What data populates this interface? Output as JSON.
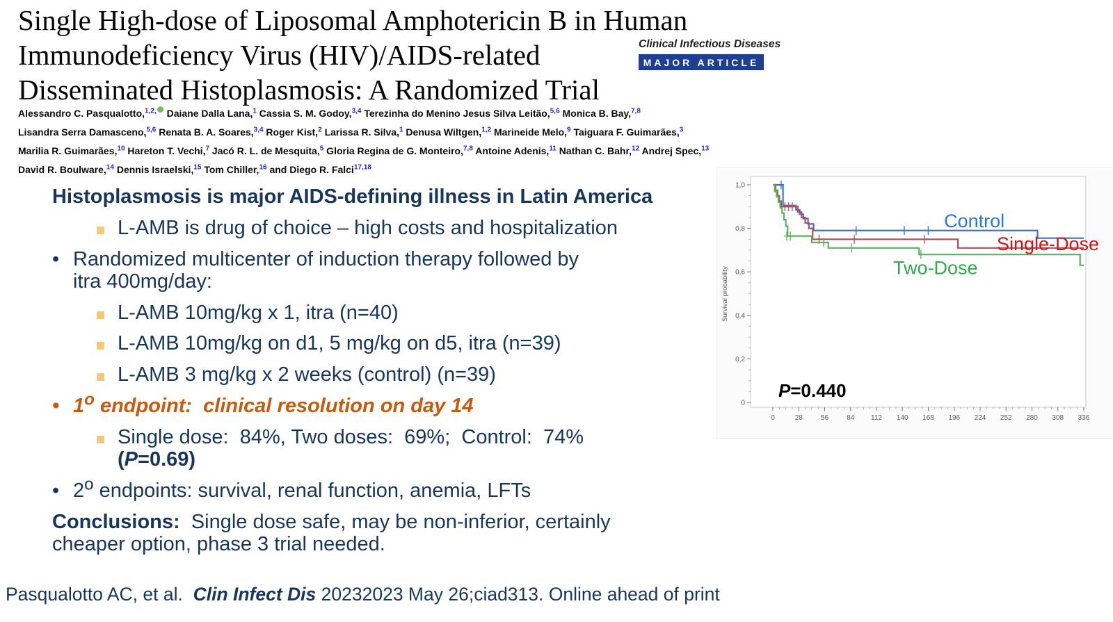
{
  "header": {
    "title_lines": [
      "Single High-dose of Liposomal Amphotericin B in Human",
      "Immunodeficiency Virus (HIV)/AIDS-related",
      "Disseminated Histoplasmosis: A Randomized Trial"
    ],
    "journal_name": "Clinical Infectious Diseases",
    "journal_badge": "MAJOR ARTICLE"
  },
  "authors": {
    "lines": [
      [
        {
          "t": "Alessandro C. Pasqualotto,"
        },
        {
          "sup": "1,2,"
        },
        {
          "icon": "orcid"
        },
        {
          "t": " Daiane Dalla Lana,"
        },
        {
          "sup": "1"
        },
        {
          "t": " Cassia S. M. Godoy,"
        },
        {
          "sup": "3,4"
        },
        {
          "t": " Terezinha do Menino Jesus Silva Leitão,"
        },
        {
          "sup": "5,6"
        },
        {
          "t": " Monica B. Bay,"
        },
        {
          "sup": "7,8"
        }
      ],
      [
        {
          "t": "Lisandra Serra Damasceno,"
        },
        {
          "sup": "5,6"
        },
        {
          "t": " Renata B. A. Soares,"
        },
        {
          "sup": "3,4"
        },
        {
          "t": " Roger Kist,"
        },
        {
          "sup": "2"
        },
        {
          "t": " Larissa R. Silva,"
        },
        {
          "sup": "1"
        },
        {
          "t": " Denusa Wiltgen,"
        },
        {
          "sup": "1,2"
        },
        {
          "t": " Marineide Melo,"
        },
        {
          "sup": "9"
        },
        {
          "t": " Taiguara F. Guimarães,"
        },
        {
          "sup": "3"
        }
      ],
      [
        {
          "t": "Marilia R. Guimarães,"
        },
        {
          "sup": "10"
        },
        {
          "t": " Hareton T. Vechi,"
        },
        {
          "sup": "7"
        },
        {
          "t": " Jacó R. L. de Mesquita,"
        },
        {
          "sup": "5"
        },
        {
          "t": " Gloria Regina de G. Monteiro,"
        },
        {
          "sup": "7,8"
        },
        {
          "t": " Antoine Adenis,"
        },
        {
          "sup": "11"
        },
        {
          "t": " Nathan C. Bahr,"
        },
        {
          "sup": "12"
        },
        {
          "t": " Andrej Spec,"
        },
        {
          "sup": "13"
        }
      ],
      [
        {
          "t": "David R. Boulware,"
        },
        {
          "sup": "14"
        },
        {
          "t": " Dennis Israelski,"
        },
        {
          "sup": "15"
        },
        {
          "t": " Tom Chiller,"
        },
        {
          "sup": "16"
        },
        {
          "t": " and Diego R. Falci"
        },
        {
          "sup": "17,18"
        }
      ]
    ]
  },
  "summary": {
    "items": [
      {
        "kind": "plain",
        "segments": [
          {
            "t": "Histoplasmosis is major AIDS-defining illness in Latin America",
            "b": true
          }
        ]
      },
      {
        "kind": "sub",
        "segments": [
          {
            "t": "L-AMB is drug of choice – high costs and hospitalization"
          }
        ]
      },
      {
        "kind": "main",
        "segments": [
          {
            "t": "Randomized multicenter of induction therapy followed by"
          },
          {
            "br": true
          },
          {
            "t": "itra 400mg/day:"
          }
        ]
      },
      {
        "kind": "sub",
        "segments": [
          {
            "t": "L-AMB 10mg/kg x 1, itra (n=40)"
          }
        ]
      },
      {
        "kind": "sub",
        "segments": [
          {
            "t": "L-AMB 10mg/kg on d1, 5 mg/kg on d5, itra (n=39)"
          }
        ]
      },
      {
        "kind": "sub",
        "segments": [
          {
            "t": "L-AMB 3 mg/kg x 2 weeks (control) (n=39)"
          }
        ]
      },
      {
        "kind": "main",
        "accent": true,
        "segments": [
          {
            "t": "1",
            "b": true,
            "i": true
          },
          {
            "sup": "o",
            "b": true,
            "i": true
          },
          {
            "t": " endpoint:  clinical resolution on day 14",
            "b": true,
            "i": true
          }
        ]
      },
      {
        "kind": "sub",
        "segments": [
          {
            "t": "Single dose:  84%, Two doses:  69%;  Control:  74% "
          },
          {
            "br": true
          },
          {
            "t": "(",
            "b": true
          },
          {
            "t": "P",
            "b": true,
            "i": true
          },
          {
            "t": "=0.69)",
            "b": true
          }
        ]
      },
      {
        "kind": "main",
        "segments": [
          {
            "t": "2"
          },
          {
            "sup": "o"
          },
          {
            "t": " endpoints: survival, renal function, anemia, LFTs"
          }
        ]
      },
      {
        "kind": "plain",
        "segments": [
          {
            "t": "Conclusions:",
            "b": true
          },
          {
            "t": "  Single dose safe, may be non-inferior, certainly"
          },
          {
            "br": true
          },
          {
            "t": "cheaper option, phase 3 trial needed."
          }
        ]
      }
    ]
  },
  "citation": {
    "segments": [
      {
        "t": "Pasqualotto AC, et al.  "
      },
      {
        "t": "Clin Infect Dis",
        "b": true,
        "i": true
      },
      {
        "t": " 20232023 May 26;ciad313. Online ahead of print"
      }
    ]
  },
  "colors": {
    "body_navy": "#17365d",
    "accent_orange": "#c55a11",
    "bullet_square": "#f5c878",
    "author_superscript_blue": "#2323e6",
    "badge_blue": "#1e3f94",
    "orcid_green": "#6ac259"
  },
  "chart_data": {
    "type": "line",
    "subtype": "kaplan-meier",
    "title": "",
    "xlabel": "",
    "ylabel": "Survival probability",
    "xlim": [
      0,
      336
    ],
    "ylim": [
      0,
      1.0
    ],
    "grid": false,
    "legend_position": "inline-labels",
    "x_ticks": [
      0,
      28,
      56,
      84,
      112,
      140,
      168,
      196,
      224,
      252,
      280,
      308,
      336
    ],
    "y_ticks_labels": [
      "1,0",
      "0,8",
      "0,6",
      "0,4",
      "0,2",
      "0"
    ],
    "y_tick_values": [
      1.0,
      0.8,
      0.6,
      0.4,
      0.2,
      0
    ],
    "p_value_label": "P=0.440",
    "series": [
      {
        "name": "Control",
        "color": "#3a6fd8",
        "label_color": "#2e75d8",
        "label_pos": [
          185,
          0.805
        ],
        "steps": [
          [
            0,
            1.0
          ],
          [
            11,
            1.0
          ],
          [
            11,
            0.905
          ],
          [
            25,
            0.905
          ],
          [
            25,
            0.885
          ],
          [
            29,
            0.885
          ],
          [
            29,
            0.865
          ],
          [
            33,
            0.865
          ],
          [
            33,
            0.845
          ],
          [
            38,
            0.845
          ],
          [
            38,
            0.82
          ],
          [
            44,
            0.82
          ],
          [
            44,
            0.79
          ],
          [
            286,
            0.79
          ],
          [
            286,
            0.755
          ],
          [
            336,
            0.755
          ]
        ],
        "censors": [
          [
            9,
            1.0
          ],
          [
            90,
            0.79
          ],
          [
            142,
            0.79
          ],
          [
            168,
            0.79
          ]
        ]
      },
      {
        "name": "Single-Dose",
        "color": "#b44d56",
        "label_color": "#cc1414",
        "label_pos": [
          242,
          0.7
        ],
        "steps": [
          [
            0,
            1.0
          ],
          [
            3,
            1.0
          ],
          [
            3,
            0.975
          ],
          [
            5,
            0.975
          ],
          [
            5,
            0.95
          ],
          [
            7,
            0.95
          ],
          [
            7,
            0.925
          ],
          [
            9,
            0.925
          ],
          [
            9,
            0.9
          ],
          [
            27,
            0.9
          ],
          [
            27,
            0.875
          ],
          [
            31,
            0.875
          ],
          [
            31,
            0.85
          ],
          [
            35,
            0.85
          ],
          [
            35,
            0.825
          ],
          [
            39,
            0.825
          ],
          [
            39,
            0.8
          ],
          [
            43,
            0.8
          ],
          [
            43,
            0.75
          ],
          [
            200,
            0.75
          ],
          [
            200,
            0.71
          ],
          [
            336,
            0.71
          ]
        ],
        "censors": [
          [
            13,
            0.9
          ],
          [
            17,
            0.9
          ],
          [
            21,
            0.9
          ],
          [
            50,
            0.75
          ],
          [
            88,
            0.75
          ],
          [
            164,
            0.75
          ]
        ]
      },
      {
        "name": "Two-Dose",
        "color": "#57b25e",
        "label_color": "#2cab47",
        "label_pos": [
          130,
          0.59
        ],
        "steps": [
          [
            0,
            1.0
          ],
          [
            2,
            1.0
          ],
          [
            2,
            0.97
          ],
          [
            4,
            0.97
          ],
          [
            4,
            0.945
          ],
          [
            6,
            0.945
          ],
          [
            6,
            0.92
          ],
          [
            8,
            0.92
          ],
          [
            8,
            0.895
          ],
          [
            10,
            0.895
          ],
          [
            10,
            0.87
          ],
          [
            12,
            0.87
          ],
          [
            12,
            0.84
          ],
          [
            14,
            0.84
          ],
          [
            14,
            0.81
          ],
          [
            16,
            0.81
          ],
          [
            16,
            0.765
          ],
          [
            42,
            0.765
          ],
          [
            42,
            0.735
          ],
          [
            60,
            0.735
          ],
          [
            60,
            0.71
          ],
          [
            158,
            0.71
          ],
          [
            158,
            0.68
          ],
          [
            332,
            0.68
          ],
          [
            332,
            0.63
          ],
          [
            336,
            0.63
          ]
        ],
        "censors": [
          [
            15,
            0.765
          ],
          [
            19,
            0.765
          ],
          [
            55,
            0.735
          ],
          [
            85,
            0.71
          ],
          [
            160,
            0.68
          ]
        ]
      }
    ]
  }
}
